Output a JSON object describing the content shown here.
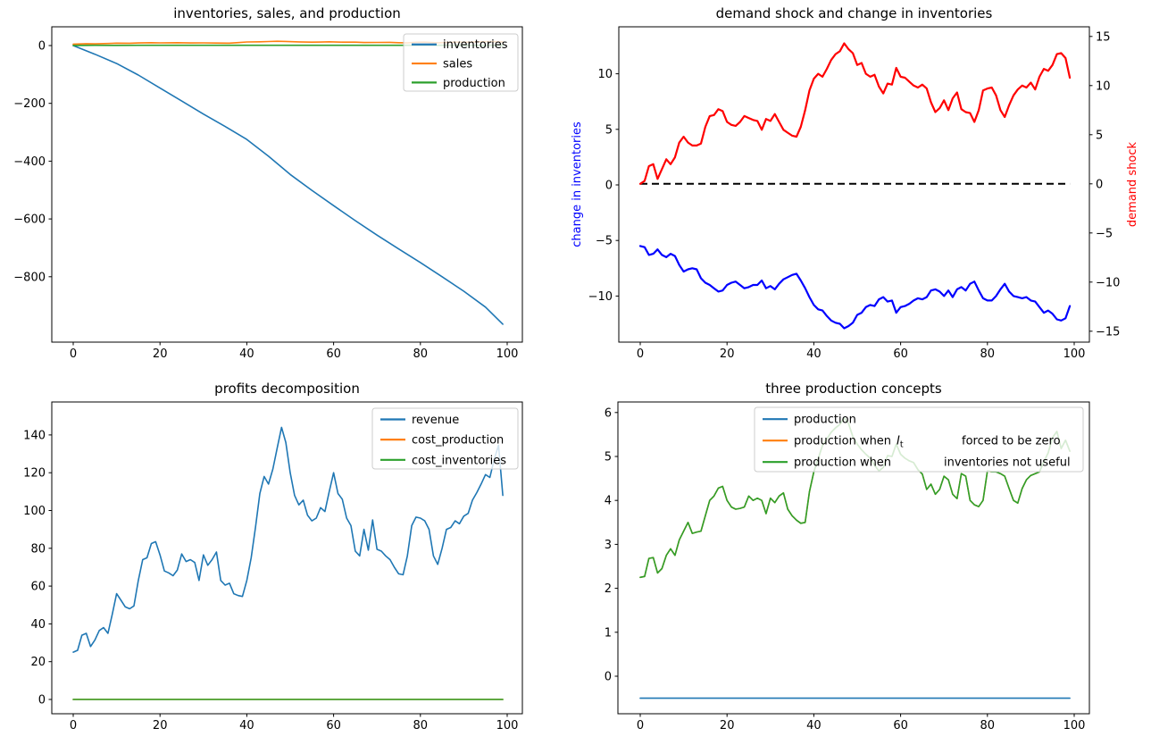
{
  "figure": {
    "background": "#ffffff"
  },
  "palette": {
    "blue": "#1f77b4",
    "orange": "#ff7f0e",
    "green": "#2ca02c",
    "pure_blue": "#0000ff",
    "pure_red": "#ff0000",
    "black": "#000000"
  },
  "chart_data": [
    {
      "id": "inventories_sales_production",
      "type": "line",
      "title": "inventories, sales, and production",
      "xlabel": "",
      "ylabel": "",
      "xlim": [
        -5,
        103.5
      ],
      "ylim": [
        -1022,
        65
      ],
      "xticks": [
        0,
        20,
        40,
        60,
        80,
        100
      ],
      "yticks": [
        0,
        -200,
        -400,
        -600,
        -800
      ],
      "grid": false,
      "legend": {
        "location": "upper right",
        "rows": [
          {
            "text": "inventories"
          },
          {
            "text": "sales"
          },
          {
            "text": "production"
          }
        ]
      },
      "series": [
        {
          "name": "inventories",
          "color": "#1f77b4",
          "points": [
            [
              0,
              0
            ],
            [
              5,
              -30
            ],
            [
              10,
              -62
            ],
            [
              15,
              -102
            ],
            [
              20,
              -147
            ],
            [
              25,
              -192
            ],
            [
              30,
              -237
            ],
            [
              35,
              -280
            ],
            [
              40,
              -325
            ],
            [
              45,
              -383
            ],
            [
              50,
              -446
            ],
            [
              55,
              -501
            ],
            [
              60,
              -554
            ],
            [
              65,
              -606
            ],
            [
              70,
              -656
            ],
            [
              75,
              -704
            ],
            [
              80,
              -751
            ],
            [
              85,
              -800
            ],
            [
              90,
              -850
            ],
            [
              95,
              -905
            ],
            [
              99,
              -964
            ]
          ]
        },
        {
          "name": "sales",
          "color": "#ff7f0e",
          "points": [
            [
              0,
              5
            ],
            [
              3,
              6.5
            ],
            [
              5,
              6
            ],
            [
              8,
              7
            ],
            [
              10,
              8.3
            ],
            [
              13,
              8
            ],
            [
              15,
              9
            ],
            [
              18,
              9.8
            ],
            [
              20,
              9.3
            ],
            [
              24,
              9.8
            ],
            [
              27,
              9
            ],
            [
              30,
              9.4
            ],
            [
              33,
              8.8
            ],
            [
              36,
              8.3
            ],
            [
              38,
              10.1
            ],
            [
              40,
              12.3
            ],
            [
              43,
              13
            ],
            [
              45,
              14
            ],
            [
              47,
              14.7
            ],
            [
              49,
              14.1
            ],
            [
              52,
              12.6
            ],
            [
              55,
              11.7
            ],
            [
              57,
              12
            ],
            [
              59,
              13
            ],
            [
              62,
              11.9
            ],
            [
              65,
              11.9
            ],
            [
              67,
              10.6
            ],
            [
              70,
              10.8
            ],
            [
              73,
              11
            ],
            [
              75,
              10
            ],
            [
              77,
              9.3
            ],
            [
              79,
              11.5
            ],
            [
              81,
              11.7
            ],
            [
              84,
              9.6
            ],
            [
              86,
              11.1
            ],
            [
              88,
              11.8
            ],
            [
              91,
              11.6
            ],
            [
              93,
              13
            ],
            [
              95,
              13.2
            ],
            [
              97,
              13.5
            ],
            [
              99,
              12.3
            ]
          ]
        },
        {
          "name": "production",
          "color": "#2ca02c",
          "points": [
            [
              0,
              0.3
            ],
            [
              5,
              0.8
            ],
            [
              10,
              0.7
            ],
            [
              15,
              0.85
            ],
            [
              20,
              0.9
            ],
            [
              25,
              0.85
            ],
            [
              30,
              0.85
            ],
            [
              35,
              0.8
            ],
            [
              40,
              1
            ],
            [
              45,
              1.05
            ],
            [
              50,
              0.95
            ],
            [
              55,
              0.9
            ],
            [
              60,
              0.9
            ],
            [
              65,
              0.95
            ],
            [
              70,
              0.95
            ],
            [
              75,
              0.9
            ],
            [
              80,
              1
            ],
            [
              85,
              0.95
            ],
            [
              90,
              0.95
            ],
            [
              95,
              1
            ],
            [
              99,
              1
            ]
          ]
        }
      ]
    },
    {
      "id": "demand_shock_and_change_in_inventories",
      "type": "line",
      "title": "demand shock and change in inventories",
      "ylabel_left": {
        "text": "change in inventories",
        "color": "#0000ff"
      },
      "ylabel_right": {
        "text": "demand shock",
        "color": "#ff0000"
      },
      "xlim": [
        -5,
        103.5
      ],
      "ylim_left": [
        -14.2,
        14.2
      ],
      "ylim_right": [
        -16,
        16
      ],
      "xticks": [
        0,
        20,
        40,
        60,
        80,
        100
      ],
      "yticks_left": [
        10,
        5,
        0,
        -5,
        -10
      ],
      "yticks_right": [
        15,
        10,
        5,
        0,
        -5,
        -10,
        -15
      ],
      "grid": false,
      "series": [
        {
          "name": "zero line",
          "color": "#000000",
          "axis": "right",
          "dash": "8 5",
          "width": 2,
          "points": [
            [
              0,
              0
            ],
            [
              99,
              0
            ]
          ]
        },
        {
          "name": "demand shock",
          "color": "#ff0000",
          "axis": "right",
          "width": 2.2,
          "values": [
            0,
            0.3,
            1.8,
            2,
            0.5,
            1.5,
            2.5,
            2,
            2.7,
            4.2,
            4.8,
            4.2,
            3.9,
            3.9,
            4.1,
            5.8,
            6.9,
            7,
            7.6,
            7.4,
            6.3,
            6,
            5.9,
            6.3,
            6.9,
            6.7,
            6.5,
            6.4,
            5.5,
            6.6,
            6.4,
            7.1,
            6.3,
            5.5,
            5.2,
            4.9,
            4.8,
            5.8,
            7.5,
            9.5,
            10.7,
            11.2,
            10.9,
            11.7,
            12.6,
            13.2,
            13.5,
            14.3,
            13.7,
            13.3,
            12.1,
            12.3,
            11.2,
            10.9,
            11.1,
            9.9,
            9.2,
            10.2,
            10.1,
            11.8,
            10.9,
            10.8,
            10.4,
            10,
            9.8,
            10.1,
            9.7,
            8.3,
            7.3,
            7.7,
            8.5,
            7.5,
            8.7,
            9.3,
            7.6,
            7.3,
            7.2,
            6.3,
            7.5,
            9.5,
            9.7,
            9.8,
            9,
            7.5,
            6.8,
            8,
            9,
            9.6,
            10,
            9.8,
            10.3,
            9.6,
            10.9,
            11.7,
            11.5,
            12.1,
            13.2,
            13.3,
            12.8,
            10.8
          ]
        },
        {
          "name": "change in inventories",
          "color": "#0000ff",
          "axis": "left",
          "width": 2.2,
          "values": [
            -5.5,
            -5.6,
            -6.3,
            -6.2,
            -5.8,
            -6.3,
            -6.5,
            -6.2,
            -6.4,
            -7.2,
            -7.8,
            -7.6,
            -7.5,
            -7.6,
            -8.4,
            -8.8,
            -9,
            -9.3,
            -9.6,
            -9.5,
            -9,
            -8.8,
            -8.7,
            -9,
            -9.3,
            -9.2,
            -9,
            -9,
            -8.6,
            -9.3,
            -9.1,
            -9.4,
            -8.9,
            -8.5,
            -8.3,
            -8.1,
            -8,
            -8.6,
            -9.3,
            -10.1,
            -10.8,
            -11.2,
            -11.3,
            -11.8,
            -12.2,
            -12.4,
            -12.5,
            -12.9,
            -12.7,
            -12.4,
            -11.7,
            -11.5,
            -11,
            -10.8,
            -10.9,
            -10.3,
            -10.1,
            -10.5,
            -10.4,
            -11.5,
            -11,
            -10.9,
            -10.7,
            -10.4,
            -10.2,
            -10.3,
            -10.1,
            -9.5,
            -9.4,
            -9.6,
            -10,
            -9.5,
            -10.1,
            -9.4,
            -9.2,
            -9.5,
            -8.9,
            -8.7,
            -9.5,
            -10.2,
            -10.4,
            -10.4,
            -10,
            -9.4,
            -8.9,
            -9.6,
            -10,
            -10.1,
            -10.2,
            -10.1,
            -10.4,
            -10.5,
            -11,
            -11.5,
            -11.3,
            -11.6,
            -12.1,
            -12.2,
            -12,
            -10.9
          ]
        }
      ]
    },
    {
      "id": "profits_decomposition",
      "type": "line",
      "title": "profits decomposition",
      "xlim": [
        -5,
        103.5
      ],
      "ylim": [
        -7,
        157
      ],
      "xticks": [
        0,
        20,
        40,
        60,
        80,
        100
      ],
      "yticks": [
        0,
        20,
        40,
        60,
        80,
        100,
        120,
        140
      ],
      "grid": false,
      "legend": {
        "location": "upper right",
        "rows": [
          {
            "text": "revenue"
          },
          {
            "text": "cost_production"
          },
          {
            "text": "cost_inventories"
          }
        ]
      },
      "series": [
        {
          "name": "revenue",
          "color": "#1f77b4",
          "values": [
            25,
            26,
            34,
            35,
            28,
            31.5,
            36.5,
            38,
            35,
            45,
            56,
            52.5,
            49,
            48,
            49.5,
            63,
            74,
            75,
            82.5,
            83.5,
            76.5,
            68,
            67,
            65.5,
            68.5,
            77,
            73,
            74,
            72.5,
            63,
            76.5,
            71,
            74,
            78,
            63,
            60.5,
            61.5,
            56,
            55,
            54.5,
            63,
            75,
            91,
            109,
            118,
            114,
            122,
            133,
            144,
            136,
            120,
            108,
            103,
            105.5,
            97.5,
            94.5,
            96,
            101.5,
            99.5,
            110,
            120,
            109,
            106,
            96,
            92,
            78.5,
            76,
            90,
            79,
            95,
            79.5,
            78.5,
            76,
            74,
            70,
            66.5,
            66,
            76,
            92,
            96.5,
            96,
            94.5,
            90,
            76,
            71.5,
            80,
            90,
            91,
            94.5,
            93,
            97,
            98.5,
            105.5,
            109.5,
            114,
            119,
            117.5,
            127,
            134.5,
            108
          ]
        },
        {
          "name": "cost_production",
          "color": "#ff7f0e",
          "points": [
            [
              0,
              0
            ],
            [
              99,
              0
            ]
          ]
        },
        {
          "name": "cost_inventories",
          "color": "#2ca02c",
          "points": [
            [
              0,
              0
            ],
            [
              99,
              0
            ]
          ]
        }
      ]
    },
    {
      "id": "three_production_concepts",
      "type": "line",
      "title": "three production concepts",
      "xlim": [
        -5,
        103.5
      ],
      "ylim": [
        -0.85,
        6.25
      ],
      "xticks": [
        0,
        20,
        40,
        60,
        80,
        100
      ],
      "yticks": [
        0,
        1,
        2,
        3,
        4,
        5,
        6
      ],
      "grid": false,
      "legend": {
        "location": "upper right",
        "rows": [
          {
            "text": "production"
          },
          {
            "text": "production when",
            "math_var": "I",
            "math_sub": "t",
            "text2": "forced to be zero"
          },
          {
            "text": "production when",
            "text2": "inventories not useful"
          }
        ]
      },
      "series": [
        {
          "name": "production",
          "color": "#1f77b4",
          "points": [
            [
              0,
              -0.5
            ],
            [
              99,
              -0.5
            ]
          ]
        },
        {
          "name": "production when I_t forced to be zero",
          "color": "#ff7f0e",
          "values": [
            2.25,
            2.27,
            2.68,
            2.7,
            2.35,
            2.45,
            2.75,
            2.9,
            2.75,
            3.1,
            3.3,
            3.5,
            3.25,
            3.28,
            3.3,
            3.65,
            4,
            4.1,
            4.28,
            4.32,
            4,
            3.85,
            3.8,
            3.82,
            3.85,
            4.1,
            4,
            4.05,
            4,
            3.7,
            4.05,
            3.95,
            4.1,
            4.17,
            3.8,
            3.65,
            3.55,
            3.48,
            3.5,
            4.2,
            4.65,
            4.95,
            5.25,
            5.4,
            5.55,
            5.65,
            5.73,
            5.88,
            5.75,
            5.45,
            5.28,
            5.15,
            5.05,
            4.96,
            4.8,
            4.67,
            4.75,
            5.02,
            5,
            5.28,
            5.05,
            4.96,
            4.9,
            4.86,
            4.7,
            4.6,
            4.25,
            4.37,
            4.14,
            4.25,
            4.55,
            4.47,
            4.14,
            4.04,
            4.61,
            4.55,
            4,
            3.9,
            3.86,
            4,
            4.67,
            4.65,
            4.65,
            4.61,
            4.55,
            4.27,
            4,
            3.94,
            4.27,
            4.47,
            4.57,
            4.61,
            4.65,
            4.88,
            5.08,
            5.43,
            5.57,
            5.18,
            5.37,
            5.12
          ]
        },
        {
          "name": "production when inventories not useful",
          "color": "#2ca02c",
          "values": [
            2.25,
            2.27,
            2.68,
            2.7,
            2.35,
            2.45,
            2.75,
            2.9,
            2.75,
            3.1,
            3.3,
            3.5,
            3.25,
            3.28,
            3.3,
            3.65,
            4,
            4.1,
            4.28,
            4.32,
            4,
            3.85,
            3.8,
            3.82,
            3.85,
            4.1,
            4,
            4.05,
            4,
            3.7,
            4.05,
            3.95,
            4.1,
            4.17,
            3.8,
            3.65,
            3.55,
            3.48,
            3.5,
            4.2,
            4.65,
            4.95,
            5.25,
            5.4,
            5.55,
            5.65,
            5.73,
            5.88,
            5.75,
            5.45,
            5.28,
            5.15,
            5.05,
            4.96,
            4.8,
            4.67,
            4.75,
            5.02,
            5,
            5.28,
            5.05,
            4.96,
            4.9,
            4.86,
            4.7,
            4.6,
            4.25,
            4.37,
            4.14,
            4.25,
            4.55,
            4.47,
            4.14,
            4.04,
            4.61,
            4.55,
            4,
            3.9,
            3.86,
            4,
            4.67,
            4.65,
            4.65,
            4.61,
            4.55,
            4.27,
            4,
            3.94,
            4.27,
            4.47,
            4.57,
            4.61,
            4.65,
            4.88,
            5.08,
            5.43,
            5.57,
            5.18,
            5.37,
            5.12
          ]
        }
      ]
    }
  ]
}
